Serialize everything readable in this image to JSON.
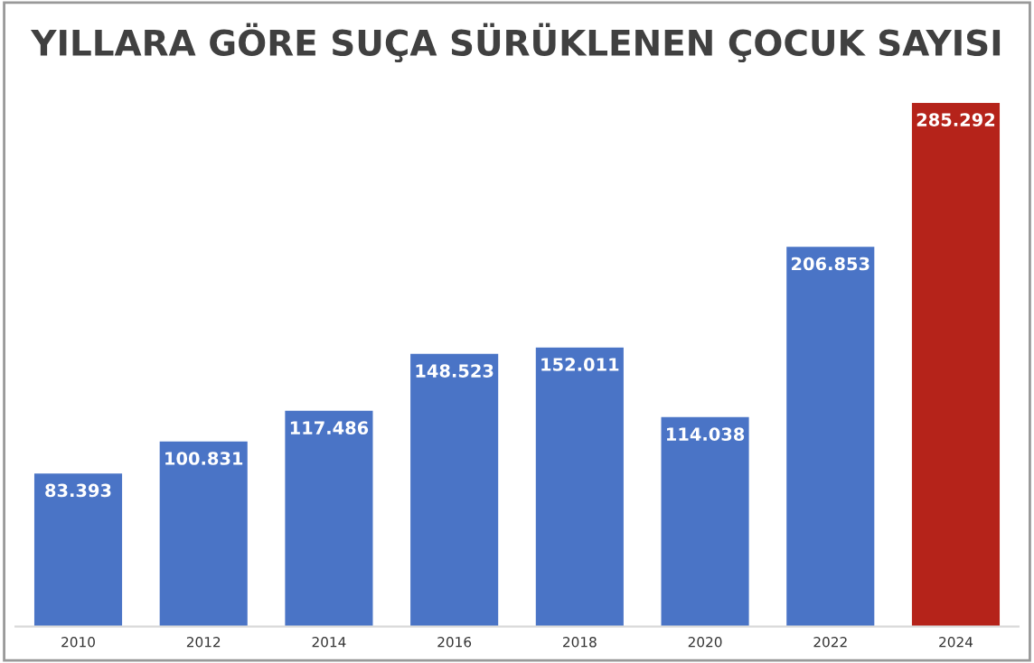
{
  "chart_data": {
    "type": "bar",
    "title": "YILLARA GÖRE SUÇA SÜRÜKLENEN ÇOCUK SAYISI",
    "categories": [
      "2010",
      "2012",
      "2014",
      "2016",
      "2018",
      "2020",
      "2022",
      "2024"
    ],
    "values": [
      83393,
      100831,
      117486,
      148523,
      152011,
      114038,
      206853,
      285292
    ],
    "value_labels": [
      "83.393",
      "100.831",
      "117.486",
      "148.523",
      "152.011",
      "114.038",
      "206.853",
      "285.292"
    ],
    "colors": [
      "#4a74c6",
      "#4a74c6",
      "#4a74c6",
      "#4a74c6",
      "#4a74c6",
      "#4a74c6",
      "#4a74c6",
      "#b5231a"
    ],
    "grid": false,
    "legend": false
  }
}
